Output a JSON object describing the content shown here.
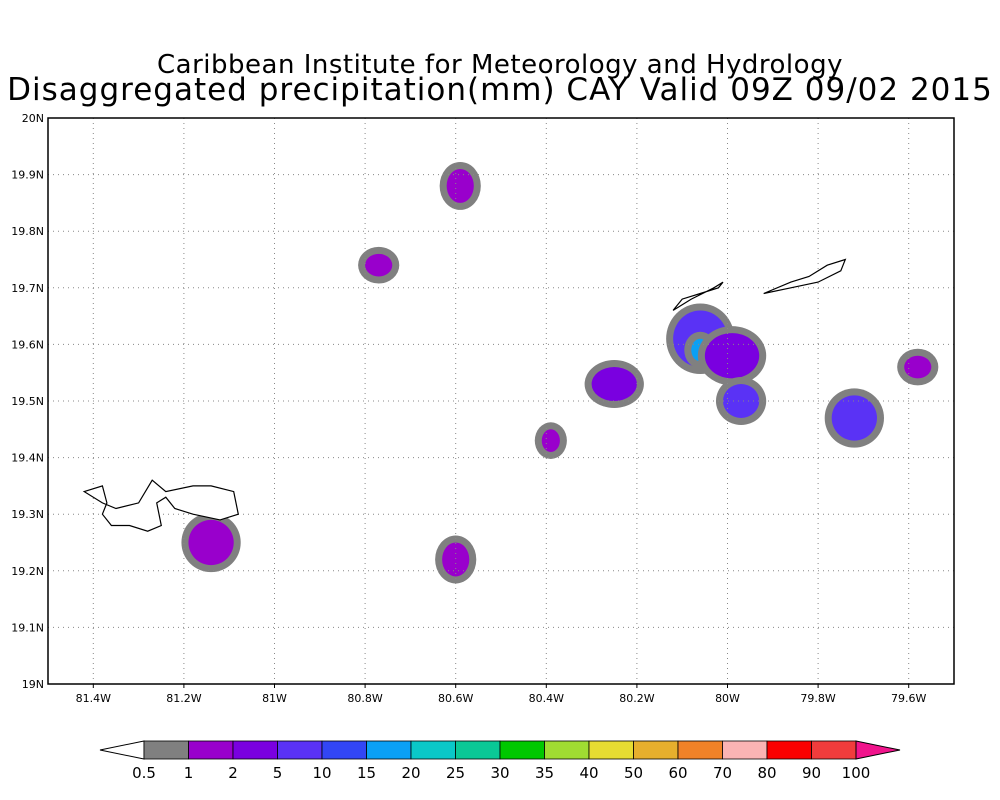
{
  "header": {
    "title_line1": "Caribbean Institute for Meteorology and Hydrology",
    "title_line2": "Disaggregated precipitation(mm) CAY Valid 09Z 09/02 2015"
  },
  "map": {
    "lon_range": [
      -81.5,
      -79.5
    ],
    "lat_range": [
      19.0,
      20.0
    ],
    "grid": true,
    "lon_ticks": [
      {
        "value": -81.4,
        "label": "81.4W"
      },
      {
        "value": -81.2,
        "label": "81.2W"
      },
      {
        "value": -81.0,
        "label": "81W"
      },
      {
        "value": -80.8,
        "label": "80.8W"
      },
      {
        "value": -80.6,
        "label": "80.6W"
      },
      {
        "value": -80.4,
        "label": "80.4W"
      },
      {
        "value": -80.2,
        "label": "80.2W"
      },
      {
        "value": -80.0,
        "label": "80W"
      },
      {
        "value": -79.8,
        "label": "79.8W"
      },
      {
        "value": -79.6,
        "label": "79.6W"
      }
    ],
    "lat_ticks": [
      {
        "value": 19.0,
        "label": "19N"
      },
      {
        "value": 19.1,
        "label": "19.1N"
      },
      {
        "value": 19.2,
        "label": "19.2N"
      },
      {
        "value": 19.3,
        "label": "19.3N"
      },
      {
        "value": 19.4,
        "label": "19.4N"
      },
      {
        "value": 19.5,
        "label": "19.5N"
      },
      {
        "value": 19.6,
        "label": "19.6N"
      },
      {
        "value": 19.7,
        "label": "19.7N"
      },
      {
        "value": 19.8,
        "label": "19.8N"
      },
      {
        "value": 19.9,
        "label": "19.9N"
      },
      {
        "value": 20.0,
        "label": "20N"
      }
    ],
    "islands": [
      {
        "name": "grand-cayman",
        "coords": [
          [
            -81.42,
            19.34
          ],
          [
            -81.38,
            19.35
          ],
          [
            -81.37,
            19.32
          ],
          [
            -81.38,
            19.3
          ],
          [
            -81.36,
            19.28
          ],
          [
            -81.32,
            19.28
          ],
          [
            -81.28,
            19.27
          ],
          [
            -81.25,
            19.28
          ],
          [
            -81.26,
            19.32
          ],
          [
            -81.24,
            19.33
          ],
          [
            -81.22,
            19.31
          ],
          [
            -81.18,
            19.3
          ],
          [
            -81.12,
            19.29
          ],
          [
            -81.08,
            19.3
          ],
          [
            -81.09,
            19.34
          ],
          [
            -81.14,
            19.35
          ],
          [
            -81.18,
            19.35
          ],
          [
            -81.24,
            19.34
          ],
          [
            -81.27,
            19.36
          ],
          [
            -81.3,
            19.32
          ],
          [
            -81.35,
            19.31
          ],
          [
            -81.38,
            19.32
          ],
          [
            -81.42,
            19.34
          ]
        ]
      },
      {
        "name": "little-cayman",
        "coords": [
          [
            -80.12,
            19.66
          ],
          [
            -80.08,
            19.68
          ],
          [
            -80.03,
            19.7
          ],
          [
            -80.01,
            19.71
          ],
          [
            -80.02,
            19.7
          ],
          [
            -80.06,
            19.69
          ],
          [
            -80.1,
            19.68
          ],
          [
            -80.12,
            19.66
          ]
        ]
      },
      {
        "name": "cayman-brac",
        "coords": [
          [
            -79.92,
            19.69
          ],
          [
            -79.86,
            19.71
          ],
          [
            -79.82,
            19.72
          ],
          [
            -79.78,
            19.74
          ],
          [
            -79.74,
            19.75
          ],
          [
            -79.75,
            19.73
          ],
          [
            -79.8,
            19.71
          ],
          [
            -79.86,
            19.7
          ],
          [
            -79.92,
            19.69
          ]
        ]
      }
    ]
  },
  "precip_cells": [
    {
      "lon": -80.06,
      "lat": 19.61,
      "rx": 0.06,
      "ry": 0.05,
      "level": "5"
    },
    {
      "lon": -80.06,
      "lat": 19.59,
      "rx": 0.02,
      "ry": 0.02,
      "level": "15"
    },
    {
      "lon": -79.99,
      "lat": 19.58,
      "rx": 0.06,
      "ry": 0.04,
      "level": "2"
    },
    {
      "lon": -79.97,
      "lat": 19.5,
      "rx": 0.04,
      "ry": 0.03,
      "level": "5"
    },
    {
      "lon": -79.72,
      "lat": 19.47,
      "rx": 0.05,
      "ry": 0.04,
      "level": "5"
    },
    {
      "lon": -80.25,
      "lat": 19.53,
      "rx": 0.05,
      "ry": 0.03,
      "level": "2"
    },
    {
      "lon": -81.14,
      "lat": 19.25,
      "rx": 0.05,
      "ry": 0.04,
      "level": "1"
    },
    {
      "lon": -80.6,
      "lat": 19.22,
      "rx": 0.03,
      "ry": 0.03,
      "level": "1"
    },
    {
      "lon": -80.59,
      "lat": 19.88,
      "rx": 0.03,
      "ry": 0.03,
      "level": "1"
    },
    {
      "lon": -80.77,
      "lat": 19.74,
      "rx": 0.03,
      "ry": 0.02,
      "level": "1"
    },
    {
      "lon": -80.39,
      "lat": 19.43,
      "rx": 0.02,
      "ry": 0.02,
      "level": "1"
    },
    {
      "lon": -79.58,
      "lat": 19.56,
      "rx": 0.03,
      "ry": 0.02,
      "level": "1"
    }
  ],
  "colorbar": {
    "labels": [
      "0.5",
      "1",
      "2",
      "5",
      "10",
      "15",
      "20",
      "25",
      "30",
      "35",
      "40",
      "50",
      "60",
      "70",
      "80",
      "90",
      "100"
    ],
    "colors": [
      "#ffffff",
      "#808080",
      "#9900cc",
      "#7a00e0",
      "#5a32f5",
      "#3246f5",
      "#0aa0f5",
      "#0ac8c8",
      "#0ac896",
      "#00c800",
      "#a0dc32",
      "#e6dc32",
      "#e6af2d",
      "#f08228",
      "#fab4b4",
      "#fa0000",
      "#f03c3c",
      "#f0148c"
    ]
  }
}
